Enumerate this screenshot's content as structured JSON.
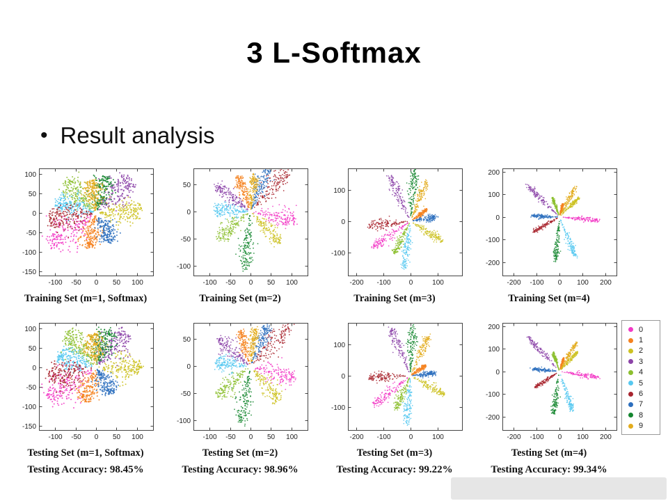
{
  "slide": {
    "title": "3 L-Softmax",
    "bullet_marker": "•",
    "bullet": "Result analysis"
  },
  "legend": {
    "labels": [
      "0",
      "1",
      "2",
      "3",
      "4",
      "5",
      "6",
      "7",
      "8",
      "9"
    ],
    "colors": [
      "#F23AC6",
      "#F5821F",
      "#CDC222",
      "#8C44A8",
      "#8CBF2F",
      "#56C8F0",
      "#A8252F",
      "#2D6FBE",
      "#14862F",
      "#E3AC1E"
    ]
  },
  "chart_data": [
    {
      "type": "scatter",
      "title": "Training Set (m=1, Softmax)",
      "xlim": [
        -140,
        140
      ],
      "xticks": [
        -100,
        -50,
        0,
        50,
        100
      ],
      "ylim": [
        -160,
        115
      ],
      "yticks": [
        -150,
        -100,
        -50,
        0,
        50,
        100
      ],
      "spread_deg": 14,
      "points_per_class": 180,
      "dot": 1.0,
      "ray_format": "[class, angle_deg, length]",
      "rays": [
        [
          0,
          215,
          138
        ],
        [
          1,
          258,
          88
        ],
        [
          2,
          3,
          112
        ],
        [
          3,
          48,
          122
        ],
        [
          4,
          132,
          112
        ],
        [
          5,
          163,
          102
        ],
        [
          6,
          188,
          118
        ],
        [
          7,
          297,
          82
        ],
        [
          8,
          76,
          98
        ],
        [
          9,
          97,
          86
        ]
      ]
    },
    {
      "type": "scatter",
      "title": "Training Set (m=2)",
      "xlim": [
        -140,
        140
      ],
      "xticks": [
        -100,
        -50,
        0,
        50,
        100
      ],
      "ylim": [
        -118,
        80
      ],
      "yticks": [
        -100,
        -50,
        0,
        50
      ],
      "spread_deg": 8,
      "points_per_class": 150,
      "dot": 0.9,
      "ray_format": "[class, angle_deg, length]",
      "rays": [
        [
          0,
          -8,
          112
        ],
        [
          1,
          115,
          72
        ],
        [
          2,
          -38,
          92
        ],
        [
          3,
          150,
          95
        ],
        [
          4,
          210,
          95
        ],
        [
          5,
          178,
          88
        ],
        [
          6,
          40,
          118
        ],
        [
          7,
          62,
          90
        ],
        [
          8,
          262,
          105
        ],
        [
          9,
          82,
          68
        ]
      ]
    },
    {
      "type": "scatter",
      "title": "Training Set (m=3)",
      "xlim": [
        -230,
        190
      ],
      "xticks": [
        -200,
        -100,
        0,
        100
      ],
      "ylim": [
        -175,
        170
      ],
      "yticks": [
        -100,
        0,
        100
      ],
      "spread_deg": 5,
      "points_per_class": 130,
      "dot": 0.85,
      "ray_format": "[class, angle_deg, length]",
      "rays": [
        [
          0,
          212,
          160
        ],
        [
          1,
          32,
          70
        ],
        [
          2,
          -28,
          135
        ],
        [
          3,
          118,
          165
        ],
        [
          4,
          240,
          120
        ],
        [
          5,
          262,
          150
        ],
        [
          6,
          185,
          155
        ],
        [
          7,
          8,
          95
        ],
        [
          8,
          85,
          160
        ],
        [
          9,
          65,
          140
        ]
      ]
    },
    {
      "type": "scatter",
      "title": "Training Set (m=4)",
      "xlim": [
        -250,
        250
      ],
      "xticks": [
        -200,
        -100,
        0,
        100,
        200
      ],
      "ylim": [
        -260,
        215
      ],
      "yticks": [
        -200,
        -100,
        0,
        100,
        200
      ],
      "spread_deg": 3.2,
      "points_per_class": 120,
      "dot": 0.85,
      "ray_format": "[class, angle_deg, length]",
      "rays": [
        [
          0,
          -5,
          170
        ],
        [
          1,
          75,
          60
        ],
        [
          2,
          45,
          120
        ],
        [
          3,
          135,
          195
        ],
        [
          4,
          110,
          90
        ],
        [
          5,
          292,
          185
        ],
        [
          6,
          210,
          130
        ],
        [
          7,
          178,
          120
        ],
        [
          8,
          265,
          190
        ],
        [
          9,
          62,
          150
        ]
      ]
    },
    {
      "type": "scatter",
      "title": "Testing Set (m=1, Softmax)",
      "accuracy": "Testing Accuracy: 98.45%",
      "xlim": [
        -140,
        140
      ],
      "xticks": [
        -100,
        -50,
        0,
        50,
        100
      ],
      "ylim": [
        -160,
        115
      ],
      "yticks": [
        -150,
        -100,
        -50,
        0,
        50,
        100
      ],
      "spread_deg": 14,
      "points_per_class": 180,
      "dot": 1.0,
      "ray_format": "[class, angle_deg, length]",
      "rays": [
        [
          0,
          212,
          142
        ],
        [
          1,
          252,
          90
        ],
        [
          2,
          0,
          110
        ],
        [
          3,
          52,
          118
        ],
        [
          4,
          128,
          115
        ],
        [
          5,
          160,
          100
        ],
        [
          6,
          192,
          120
        ],
        [
          7,
          300,
          78
        ],
        [
          8,
          72,
          102
        ],
        [
          9,
          94,
          88
        ]
      ]
    },
    {
      "type": "scatter",
      "title": "Testing Set (m=2)",
      "accuracy": "Testing Accuracy: 98.96%",
      "xlim": [
        -140,
        140
      ],
      "xticks": [
        -100,
        -50,
        0,
        50,
        100
      ],
      "ylim": [
        -118,
        80
      ],
      "yticks": [
        -100,
        -50,
        0,
        50
      ],
      "spread_deg": 8,
      "points_per_class": 150,
      "dot": 0.9,
      "ray_format": "[class, angle_deg, length]",
      "rays": [
        [
          0,
          -12,
          110
        ],
        [
          1,
          112,
          70
        ],
        [
          2,
          -42,
          95
        ],
        [
          3,
          148,
          92
        ],
        [
          4,
          214,
          98
        ],
        [
          5,
          175,
          85
        ],
        [
          6,
          38,
          120
        ],
        [
          7,
          60,
          88
        ],
        [
          8,
          258,
          108
        ],
        [
          9,
          80,
          70
        ]
      ]
    },
    {
      "type": "scatter",
      "title": "Testing Set (m=3)",
      "accuracy": "Testing Accuracy: 99.22%",
      "xlim": [
        -230,
        190
      ],
      "xticks": [
        -200,
        -100,
        0,
        100
      ],
      "ylim": [
        -175,
        170
      ],
      "yticks": [
        -100,
        0,
        100
      ],
      "spread_deg": 5,
      "points_per_class": 130,
      "dot": 0.85,
      "ray_format": "[class, angle_deg, length]",
      "rays": [
        [
          0,
          215,
          165
        ],
        [
          1,
          30,
          65
        ],
        [
          2,
          -25,
          138
        ],
        [
          3,
          115,
          168
        ],
        [
          4,
          243,
          118
        ],
        [
          5,
          265,
          155
        ],
        [
          6,
          182,
          150
        ],
        [
          7,
          5,
          92
        ],
        [
          8,
          88,
          158
        ],
        [
          9,
          62,
          142
        ]
      ]
    },
    {
      "type": "scatter",
      "title": "Testing Set (m=4)",
      "accuracy": "Testing Accuracy: 99.34%",
      "xlim": [
        -250,
        250
      ],
      "xticks": [
        -200,
        -100,
        0,
        100,
        200
      ],
      "ylim": [
        -260,
        215
      ],
      "yticks": [
        -200,
        -100,
        0,
        100,
        200
      ],
      "spread_deg": 3.2,
      "points_per_class": 120,
      "dot": 0.85,
      "ray_format": "[class, angle_deg, length]",
      "rays": [
        [
          0,
          -8,
          172
        ],
        [
          1,
          72,
          62
        ],
        [
          2,
          48,
          118
        ],
        [
          3,
          132,
          198
        ],
        [
          4,
          108,
          88
        ],
        [
          5,
          288,
          182
        ],
        [
          6,
          214,
          128
        ],
        [
          7,
          175,
          118
        ],
        [
          8,
          262,
          192
        ],
        [
          9,
          60,
          148
        ]
      ]
    }
  ]
}
